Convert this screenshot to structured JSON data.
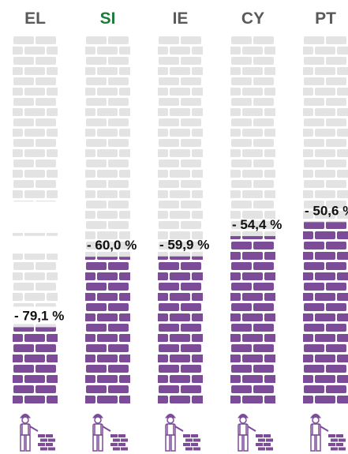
{
  "chart_data": {
    "type": "brick-bar",
    "categories": [
      "EL",
      "SI",
      "IE",
      "CY",
      "PT"
    ],
    "category_colors": [
      "#5a5a5a",
      "#1f7a3c",
      "#5a5a5a",
      "#5a5a5a",
      "#5a5a5a"
    ],
    "values": [
      -79.1,
      -60.0,
      -59.9,
      -54.4,
      -50.6
    ],
    "value_labels": [
      "- 79,1 %",
      "- 60,0 %",
      "- 59,9 %",
      "- 54,4 %",
      "- 50,6 %"
    ],
    "color": "#7d4c98",
    "wall_color": "#e3e3e3",
    "ylim": [
      -100,
      0
    ]
  }
}
